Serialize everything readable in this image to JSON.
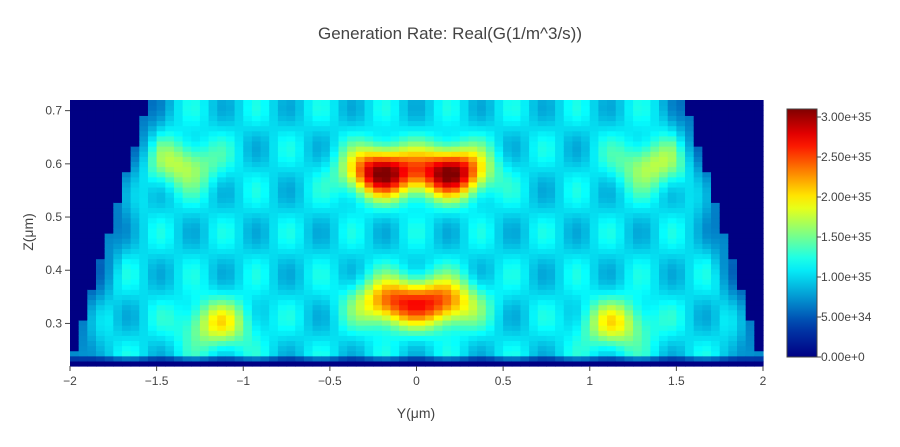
{
  "chart_data": {
    "type": "heatmap",
    "title": "Generation Rate: Real(G(1/m^3/s))",
    "xlabel": "Y(μm)",
    "ylabel": "Z(μm)",
    "xlim": [
      -2,
      2
    ],
    "ylim": [
      0.22,
      0.72
    ],
    "xticks": [
      -2,
      -1.5,
      -1,
      -0.5,
      0,
      0.5,
      1,
      1.5,
      2
    ],
    "xtick_labels": [
      "−2",
      "−1.5",
      "−1",
      "−0.5",
      "0",
      "0.5",
      "1",
      "1.5",
      "2"
    ],
    "yticks": [
      0.3,
      0.4,
      0.5,
      0.6,
      0.7
    ],
    "ytick_labels": [
      "0.3",
      "0.4",
      "0.5",
      "0.6",
      "0.7"
    ],
    "colorbar": {
      "min": 0,
      "max": 3.1e+35,
      "ticks": [
        0,
        5e+34,
        1e+35,
        1.5e+35,
        2e+35,
        2.5e+35,
        3e+35
      ],
      "tick_labels": [
        "0.00e+0",
        "5.00e+34",
        "1.00e+35",
        "1.50e+35",
        "2.00e+35",
        "2.50e+35",
        "3.00e+35"
      ],
      "colorscale": "jet"
    },
    "hotspots": [
      {
        "y": -0.2,
        "z": 0.585,
        "value": 3.1e+35
      },
      {
        "y": 0.2,
        "z": 0.585,
        "value": 3.1e+35
      },
      {
        "y": -0.15,
        "z": 0.34,
        "value": 2.4e+35
      },
      {
        "y": 0.15,
        "z": 0.34,
        "value": 2.4e+35
      },
      {
        "y": -1.15,
        "z": 0.3,
        "value": 1.9e+35
      },
      {
        "y": 1.15,
        "z": 0.3,
        "value": 1.9e+35
      },
      {
        "y": -1.35,
        "z": 0.6,
        "value": 1.75e+35
      },
      {
        "y": 1.35,
        "z": 0.6,
        "value": 1.75e+35
      }
    ],
    "device_outline": {
      "y_bottom": [
        -2,
        2
      ],
      "y_top": [
        -1.55,
        1.55
      ],
      "z_bottom": 0.225,
      "z_top": 0.72
    }
  }
}
